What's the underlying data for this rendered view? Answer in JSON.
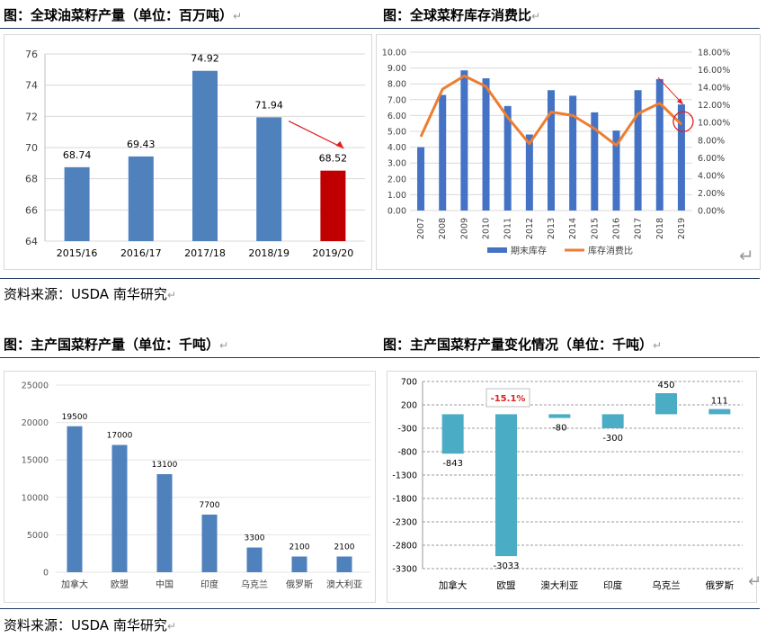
{
  "sections": {
    "top_left_title": "图：全球油菜籽产量（单位：百万吨）",
    "top_right_title": "图：全球菜籽库存消费比",
    "source_1": "资料来源：USDA  南华研究",
    "bottom_left_title": "图：主产国菜籽产量（单位：千吨）",
    "bottom_right_title": "图：主产国菜籽产量变化情况（单位：千吨）",
    "source_2": "资料来源：USDA  南华研究",
    "return_mark": "↵"
  },
  "chart_data": [
    {
      "id": "global_production",
      "type": "bar",
      "categories": [
        "2015/16",
        "2016/17",
        "2017/18",
        "2018/19",
        "2019/20"
      ],
      "values": [
        68.74,
        69.43,
        74.92,
        71.94,
        68.52
      ],
      "value_labels": [
        "68.74",
        "69.43",
        "74.92",
        "71.94",
        "68.52"
      ],
      "ylim": [
        64,
        76
      ],
      "yticks": [
        "64",
        "66",
        "68",
        "70",
        "72",
        "74",
        "76"
      ],
      "grid": true,
      "colors": {
        "bar": "#4f81bd",
        "highlight": "#c00000",
        "arrow": "#e02020"
      }
    },
    {
      "id": "stock_to_use",
      "type": "bar+line",
      "categories": [
        "2007",
        "2008",
        "2009",
        "2010",
        "2011",
        "2012",
        "2013",
        "2014",
        "2015",
        "2016",
        "2017",
        "2018",
        "2019"
      ],
      "series": [
        {
          "name": "期末库存",
          "type": "bar",
          "axis": "left",
          "values": [
            4.0,
            7.3,
            8.85,
            8.35,
            6.6,
            4.8,
            7.6,
            7.25,
            6.2,
            5.05,
            7.6,
            8.3,
            6.7
          ]
        },
        {
          "name": "库存消费比",
          "type": "line",
          "axis": "right",
          "values": [
            8.4,
            13.8,
            15.3,
            14.1,
            10.6,
            7.6,
            11.2,
            10.8,
            9.3,
            7.4,
            11.0,
            12.2,
            9.8
          ]
        }
      ],
      "ylim": [
        0,
        10
      ],
      "yticks": [
        "0.00",
        "1.00",
        "2.00",
        "3.00",
        "4.00",
        "5.00",
        "6.00",
        "7.00",
        "8.00",
        "9.00",
        "10.00"
      ],
      "y2lim": [
        0,
        18
      ],
      "y2ticks": [
        "0.00%",
        "2.00%",
        "4.00%",
        "6.00%",
        "8.00%",
        "10.00%",
        "12.00%",
        "14.00%",
        "16.00%",
        "18.00%"
      ],
      "legend_position": "bottom",
      "grid": true,
      "colors": {
        "bar": "#4472c4",
        "line": "#ed7d31",
        "annotation": "#e02020"
      }
    },
    {
      "id": "country_production",
      "type": "bar",
      "categories": [
        "加拿大",
        "欧盟",
        "中国",
        "印度",
        "乌克兰",
        "俄罗斯",
        "澳大利亚"
      ],
      "values": [
        19500,
        17000,
        13100,
        7700,
        3300,
        2100,
        2100
      ],
      "value_labels": [
        "19500",
        "17000",
        "13100",
        "7700",
        "3300",
        "2100",
        "2100"
      ],
      "ylim": [
        0,
        25000
      ],
      "yticks": [
        "0",
        "5000",
        "10000",
        "15000",
        "20000",
        "25000"
      ],
      "grid": true,
      "colors": {
        "bar": "#4f81bd"
      }
    },
    {
      "id": "country_change",
      "type": "bar",
      "categories": [
        "加拿大",
        "欧盟",
        "澳大利亚",
        "印度",
        "乌克兰",
        "俄罗斯"
      ],
      "values": [
        -843,
        -3033,
        -80,
        -300,
        450,
        111
      ],
      "value_labels": [
        "-843",
        "-3033",
        "-80",
        "-300",
        "450",
        "111"
      ],
      "callout": "-15.1%",
      "ylim": [
        -3300,
        700
      ],
      "yticks": [
        "700",
        "200",
        "-300",
        "-800",
        "-1300",
        "-1800",
        "-2300",
        "-2800",
        "-3300"
      ],
      "grid": true,
      "colors": {
        "bar": "#4bacc6",
        "callout": "#e02020"
      }
    }
  ]
}
